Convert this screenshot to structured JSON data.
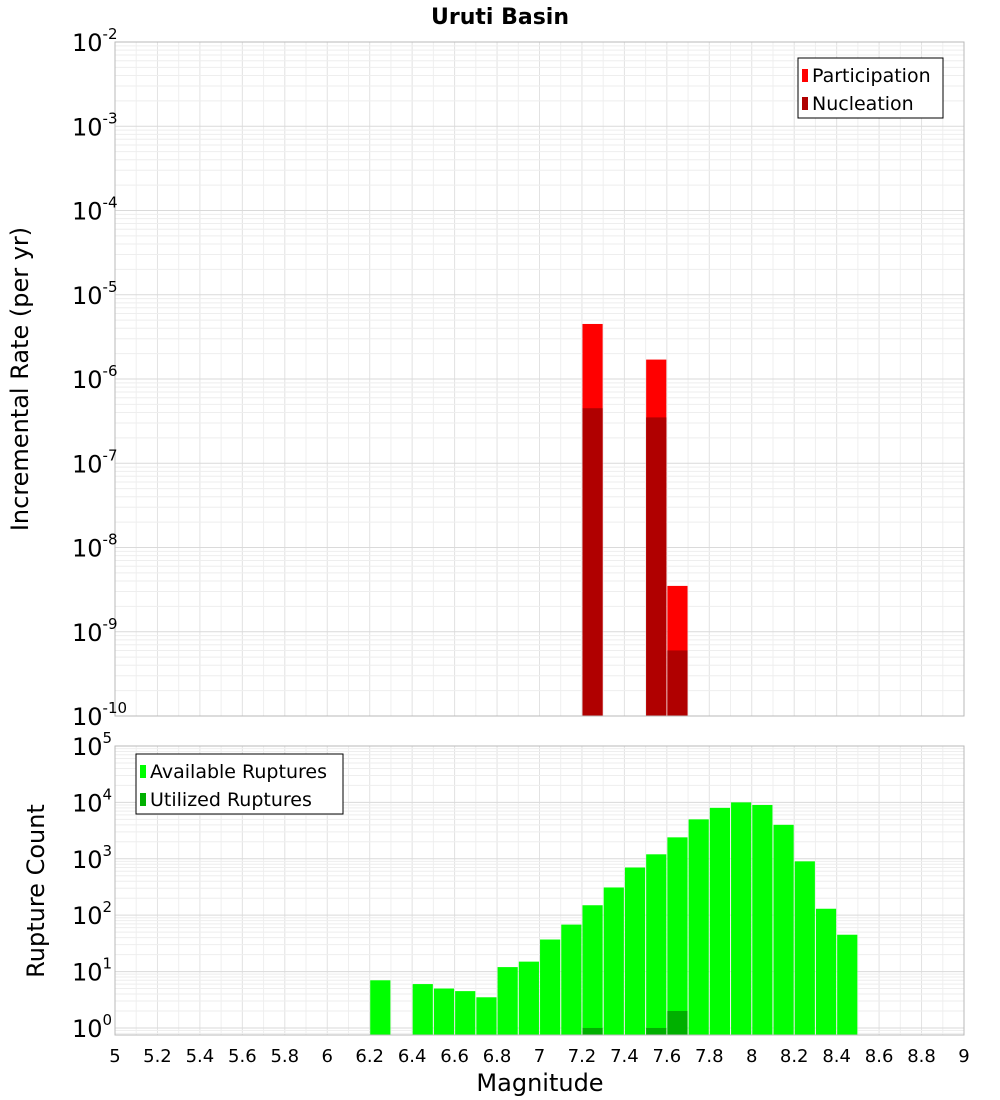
{
  "chart_data": [
    {
      "type": "bar",
      "title": "Uruti Basin",
      "xlabel": "Magnitude",
      "ylabel": "Incremental Rate (per yr)",
      "y_scale": "log",
      "ylim": [
        1e-10,
        0.01
      ],
      "xlim": [
        5,
        9
      ],
      "grid": true,
      "legend_position": "top-right",
      "x": [
        7.25,
        7.55,
        7.65
      ],
      "series": [
        {
          "name": "Participation",
          "color": "#ff0000",
          "values": [
            4.5e-06,
            1.7e-06,
            3.5e-09
          ]
        },
        {
          "name": "Nucleation",
          "color": "#b00000",
          "values": [
            4.5e-07,
            3.5e-07,
            6e-10
          ]
        }
      ]
    },
    {
      "type": "bar",
      "title": "",
      "xlabel": "Magnitude",
      "ylabel": "Rupture Count",
      "y_scale": "log",
      "ylim": [
        0.75,
        100000
      ],
      "xlim": [
        5,
        9
      ],
      "grid": true,
      "legend_position": "top-left",
      "x": [
        6.25,
        6.45,
        6.55,
        6.65,
        6.75,
        6.85,
        6.95,
        7.05,
        7.15,
        7.25,
        7.35,
        7.45,
        7.55,
        7.65,
        7.75,
        7.85,
        7.95,
        8.05,
        8.15,
        8.25,
        8.35,
        8.45
      ],
      "series": [
        {
          "name": "Available Ruptures",
          "color": "#00ff00",
          "values": [
            7,
            6,
            5,
            4.5,
            3.5,
            12,
            15,
            37,
            68,
            150,
            310,
            700,
            1200,
            2400,
            5000,
            8000,
            10000,
            9000,
            4000,
            900,
            130,
            45
          ]
        },
        {
          "name": "Utilized Ruptures",
          "color": "#00b000",
          "values": [
            null,
            null,
            null,
            null,
            null,
            null,
            null,
            null,
            null,
            1,
            null,
            null,
            1,
            2,
            null,
            null,
            null,
            null,
            null,
            null,
            null,
            null
          ]
        }
      ]
    }
  ],
  "x_ticks": [
    "5",
    "5.2",
    "5.4",
    "5.6",
    "5.8",
    "6",
    "6.2",
    "6.4",
    "6.6",
    "6.8",
    "7",
    "7.2",
    "7.4",
    "7.6",
    "7.8",
    "8",
    "8.2",
    "8.4",
    "8.6",
    "8.8",
    "9"
  ],
  "top_y_ticks": [
    {
      "base": "10",
      "exp": "-10"
    },
    {
      "base": "10",
      "exp": "-9"
    },
    {
      "base": "10",
      "exp": "-8"
    },
    {
      "base": "10",
      "exp": "-7"
    },
    {
      "base": "10",
      "exp": "-6"
    },
    {
      "base": "10",
      "exp": "-5"
    },
    {
      "base": "10",
      "exp": "-4"
    },
    {
      "base": "10",
      "exp": "-3"
    },
    {
      "base": "10",
      "exp": "-2"
    }
  ],
  "bottom_y_ticks": [
    {
      "base": "10",
      "exp": "0"
    },
    {
      "base": "10",
      "exp": "1"
    },
    {
      "base": "10",
      "exp": "2"
    },
    {
      "base": "10",
      "exp": "3"
    },
    {
      "base": "10",
      "exp": "4"
    },
    {
      "base": "10",
      "exp": "5"
    }
  ]
}
